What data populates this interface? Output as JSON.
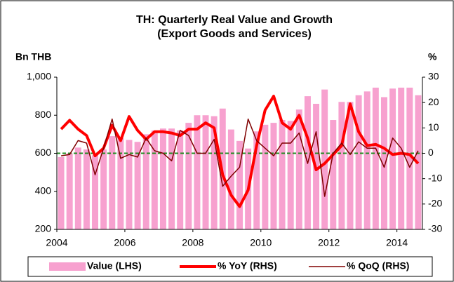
{
  "chart_data": {
    "type": "combo",
    "title": "TH: Quarterly Real Value and Growth",
    "subtitle": "(Export Goods and Services)",
    "ylabel": "Bn THB",
    "y2label": "%",
    "x": [
      2004.125,
      2004.375,
      2004.625,
      2004.875,
      2005.125,
      2005.375,
      2005.625,
      2005.875,
      2006.125,
      2006.375,
      2006.625,
      2006.875,
      2007.125,
      2007.375,
      2007.625,
      2007.875,
      2008.125,
      2008.375,
      2008.625,
      2008.875,
      2009.125,
      2009.375,
      2009.625,
      2009.875,
      2010.125,
      2010.375,
      2010.625,
      2010.875,
      2011.125,
      2011.375,
      2011.625,
      2011.875,
      2012.125,
      2012.375,
      2012.625,
      2012.875,
      2013.125,
      2013.375,
      2013.625,
      2013.875,
      2014.125,
      2014.375,
      2014.625
    ],
    "series": [
      {
        "name": "Value (LHS)",
        "type": "bar",
        "color": "#f7a1cf",
        "values": [
          580,
          600,
          630,
          620,
          590,
          620,
          690,
          680,
          670,
          660,
          700,
          720,
          730,
          730,
          720,
          760,
          800,
          800,
          795,
          835,
          725,
          665,
          625,
          715,
          750,
          760,
          775,
          770,
          830,
          900,
          860,
          935,
          775,
          870,
          870,
          905,
          925,
          945,
          895,
          940,
          945,
          945,
          905
        ]
      },
      {
        "name": "% YoY (RHS)",
        "type": "line",
        "axis": "y2",
        "color": "#ff0000",
        "values": [
          9.5,
          13,
          9.5,
          7,
          -1,
          2,
          11,
          5,
          14.5,
          9,
          5.5,
          8.5,
          8.5,
          8,
          7,
          9.5,
          9.5,
          12,
          10,
          -8.5,
          -16.5,
          -21,
          -14.5,
          3,
          17,
          22.5,
          12,
          9.5,
          15,
          6,
          -6.5,
          -4,
          -0.5,
          3,
          19.5,
          8.5,
          3,
          3.5,
          2,
          -0.5,
          0,
          -0.5,
          -4
        ]
      },
      {
        "name": "% QoQ (RHS)",
        "type": "line",
        "axis": "y2",
        "color": "#800000",
        "values": [
          -1,
          -0.5,
          5,
          4,
          -8.5,
          2,
          13.5,
          -2,
          -0.5,
          -1.5,
          6,
          1,
          0,
          -3,
          9,
          7,
          0,
          0,
          5.5,
          -13,
          -9,
          -5.5,
          13.5,
          5,
          2,
          -1,
          4,
          4,
          8,
          -4,
          8.5,
          -17,
          0,
          4,
          -0.5,
          4.5,
          2,
          2,
          -5.5,
          6,
          2,
          -5.5,
          1
        ]
      }
    ],
    "xlim": [
      2004,
      2014.75
    ],
    "xticks": [
      2004,
      2006,
      2008,
      2010,
      2012,
      2014
    ],
    "ylim": [
      200,
      1000
    ],
    "yticks": [
      200,
      400,
      600,
      800,
      {
        "value": 1000,
        "label": "1,000"
      }
    ],
    "y2lim": [
      -30,
      30
    ],
    "y2ticks": [
      -30,
      -20,
      -10,
      0,
      10,
      20,
      30
    ],
    "reference_line": {
      "axis": "y2",
      "value": 0,
      "color": "#228b22"
    },
    "legend": "bottom"
  }
}
